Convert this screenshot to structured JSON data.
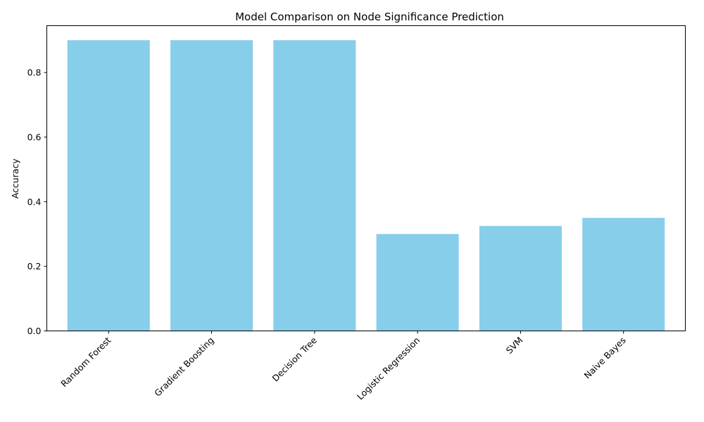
{
  "chart_data": {
    "type": "bar",
    "title": "Model Comparison on Node Significance Prediction",
    "xlabel": "",
    "ylabel": "Accuracy",
    "categories": [
      "Random Forest",
      "Gradient Boosting",
      "Decision Tree",
      "Logistic Regression",
      "SVM",
      "Naive Bayes"
    ],
    "values": [
      0.9,
      0.9,
      0.9,
      0.3,
      0.325,
      0.35
    ],
    "ylim": [
      0,
      0.945
    ],
    "yticks": [
      0.0,
      0.2,
      0.4,
      0.6,
      0.8
    ],
    "ytick_labels": [
      "0.0",
      "0.2",
      "0.4",
      "0.6",
      "0.8"
    ],
    "bar_color": "#87ceeb",
    "grid": false,
    "legend": "none"
  }
}
